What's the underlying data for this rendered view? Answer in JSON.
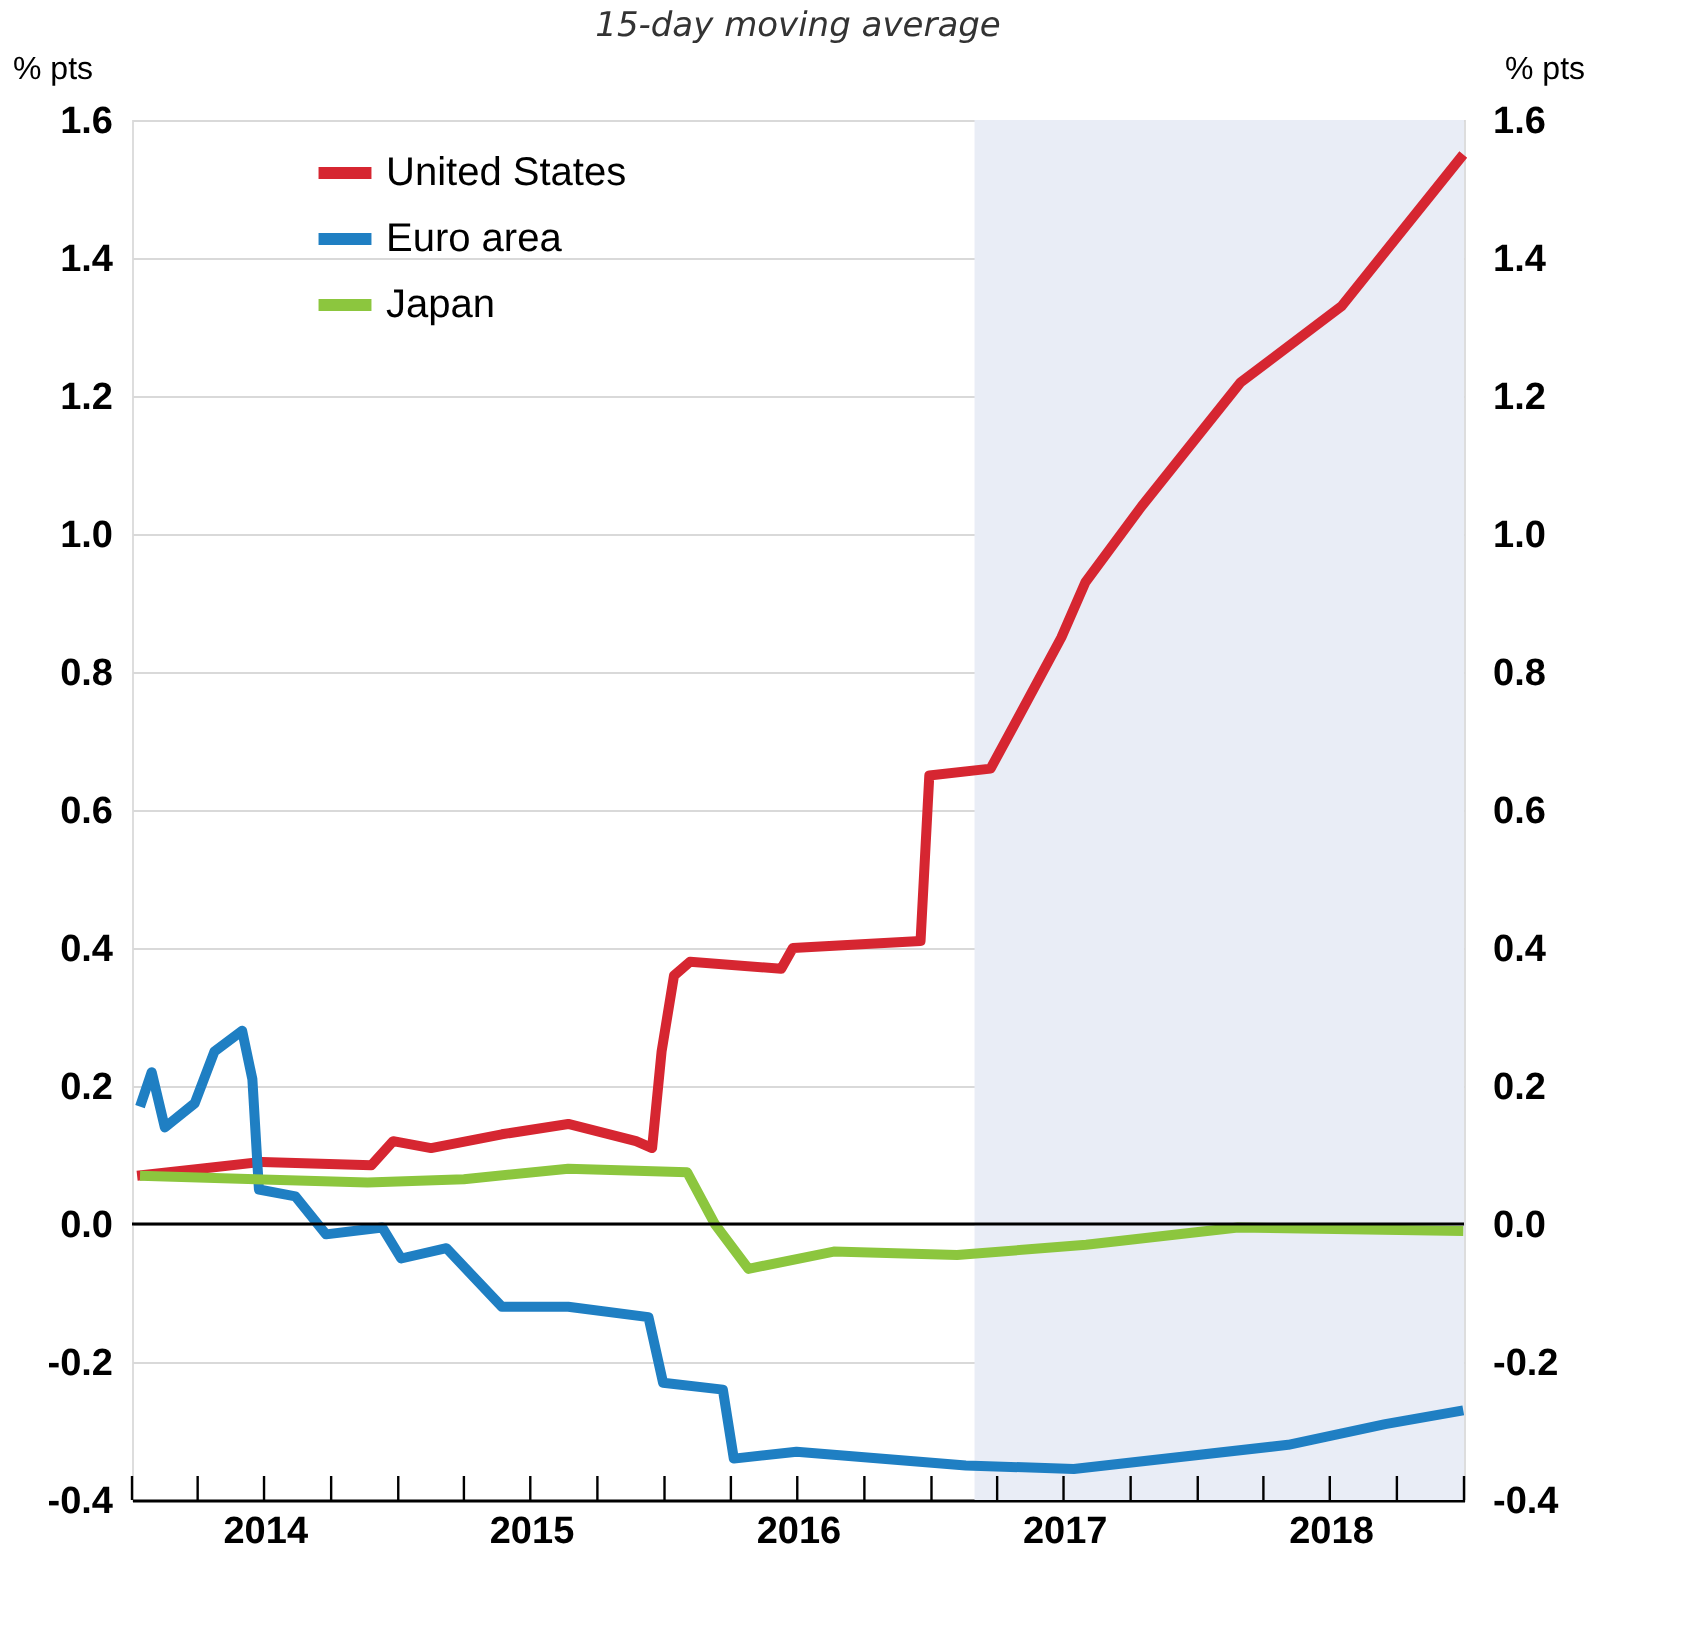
{
  "chart_data": {
    "type": "line",
    "subtitle": "15-day moving average",
    "ylabel": "% pts",
    "y2label": "% pts",
    "xlim": [
      "2014-01-01",
      "2019-01-01"
    ],
    "xticks": [
      {
        "value": "2014-01-01",
        "label": null
      },
      {
        "value": "2014-04-01",
        "label": null
      },
      {
        "value": "2014-07-01",
        "label": null
      },
      {
        "value": "2014-10-01",
        "label": null
      },
      {
        "value": "2015-01-01",
        "label": null
      },
      {
        "value": "2015-04-01",
        "label": null
      },
      {
        "value": "2015-07-01",
        "label": null
      },
      {
        "value": "2015-10-01",
        "label": null
      },
      {
        "value": "2016-01-01",
        "label": null
      },
      {
        "value": "2016-04-01",
        "label": null
      },
      {
        "value": "2016-07-01",
        "label": null
      },
      {
        "value": "2016-10-01",
        "label": null
      },
      {
        "value": "2017-01-01",
        "label": null
      },
      {
        "value": "2017-04-01",
        "label": null
      },
      {
        "value": "2017-07-01",
        "label": null
      },
      {
        "value": "2017-10-01",
        "label": null
      },
      {
        "value": "2018-01-01",
        "label": null
      },
      {
        "value": "2018-04-01",
        "label": null
      },
      {
        "value": "2018-07-01",
        "label": null
      },
      {
        "value": "2018-10-01",
        "label": null
      },
      {
        "value": "2019-01-01",
        "label": null
      },
      {
        "value": "2014-07-02",
        "label": "2014"
      },
      {
        "value": "2015-07-02",
        "label": "2015"
      },
      {
        "value": "2016-07-02",
        "label": "2016"
      },
      {
        "value": "2017-07-02",
        "label": "2017"
      },
      {
        "value": "2018-07-02",
        "label": "2018"
      }
    ],
    "ylim": [
      -0.4,
      1.6
    ],
    "yticks": [
      {
        "value": -0.4,
        "label": "-0.4"
      },
      {
        "value": -0.2,
        "label": "-0.2"
      },
      {
        "value": 0,
        "label": "0.0"
      },
      {
        "value": 0.2,
        "label": "0.2"
      },
      {
        "value": 0.4,
        "label": "0.4"
      },
      {
        "value": 0.6,
        "label": "0.6"
      },
      {
        "value": 0.8,
        "label": "0.8"
      },
      {
        "value": 1,
        "label": "1.0"
      },
      {
        "value": 1.2,
        "label": "1.2"
      },
      {
        "value": 1.4,
        "label": "1.4"
      },
      {
        "value": 1.6,
        "label": "1.6"
      }
    ],
    "y2lim": [
      -0.4,
      1.6
    ],
    "y2ticks": [
      {
        "value": -0.4,
        "label": "-0.4"
      },
      {
        "value": -0.2,
        "label": "-0.2"
      },
      {
        "value": 0,
        "label": "0.0"
      },
      {
        "value": 0.2,
        "label": "0.2"
      },
      {
        "value": 0.4,
        "label": "0.4"
      },
      {
        "value": 0.6,
        "label": "0.6"
      },
      {
        "value": 0.8,
        "label": "0.8"
      },
      {
        "value": 1,
        "label": "1.0"
      },
      {
        "value": 1.2,
        "label": "1.2"
      },
      {
        "value": 1.4,
        "label": "1.4"
      },
      {
        "value": 1.6,
        "label": "1.6"
      }
    ],
    "grid": "y",
    "legend": "top left",
    "line_style": "solid",
    "marker": "none",
    "ref_lines": [
      {
        "axis": "y",
        "value": 0,
        "color": "#000000"
      }
    ],
    "bands": [
      {
        "axis": "x",
        "from": "2017-03-01",
        "to": "2019-01-01",
        "color": "#e9edf6"
      }
    ],
    "series": [
      {
        "name": "United States",
        "color": "#d62631",
        "x": [
          "2014-01-08",
          "2014-04-05",
          "2014-06-28",
          "2014-11-25",
          "2014-12-25",
          "2015-02-15",
          "2015-05-23",
          "2015-08-22",
          "2015-11-23",
          "2015-12-15",
          "2015-12-28",
          "2016-01-14",
          "2016-02-05",
          "2016-06-09",
          "2016-06-25",
          "2016-12-17",
          "2016-12-29",
          "2017-03-23",
          "2017-05-03",
          "2017-06-28",
          "2017-07-31",
          "2017-10-16",
          "2018-03-01",
          "2018-07-17",
          "2018-12-31"
        ],
        "values": [
          0.07,
          0.08,
          0.09,
          0.085,
          0.12,
          0.11,
          0.13,
          0.145,
          0.12,
          0.11,
          0.25,
          0.36,
          0.38,
          0.37,
          0.4,
          0.41,
          0.65,
          0.66,
          0.74,
          0.85,
          0.93,
          1.04,
          1.22,
          1.33,
          1.55
        ]
      },
      {
        "name": "Euro area",
        "color": "#1f7fc3",
        "x": [
          "2014-01-12",
          "2014-01-28",
          "2014-02-15",
          "2014-03-28",
          "2014-04-24",
          "2014-06-01",
          "2014-06-15",
          "2014-06-24",
          "2014-08-13",
          "2014-09-24",
          "2014-12-10",
          "2015-01-05",
          "2015-03-08",
          "2015-05-23",
          "2015-08-22",
          "2015-12-10",
          "2015-12-30",
          "2016-03-21",
          "2016-04-05",
          "2016-06-30",
          "2017-02-17",
          "2017-07-15",
          "2018-05-05",
          "2018-09-15",
          "2018-12-31"
        ],
        "values": [
          0.17,
          0.22,
          0.14,
          0.175,
          0.25,
          0.28,
          0.21,
          0.05,
          0.04,
          -0.015,
          -0.005,
          -0.05,
          -0.035,
          -0.12,
          -0.12,
          -0.135,
          -0.23,
          -0.24,
          -0.34,
          -0.33,
          -0.35,
          -0.355,
          -0.32,
          -0.29,
          -0.27
        ]
      },
      {
        "name": "Japan",
        "color": "#8cc63e",
        "x": [
          "2014-01-12",
          "2014-11-20",
          "2015-04-01",
          "2015-08-22",
          "2016-02-01",
          "2016-03-10",
          "2016-04-25",
          "2016-08-20",
          "2017-02-05",
          "2017-08-01",
          "2018-02-25",
          "2018-12-31"
        ],
        "values": [
          0.07,
          0.06,
          0.065,
          0.08,
          0.075,
          0.0,
          -0.065,
          -0.04,
          -0.045,
          -0.03,
          -0.005,
          -0.01
        ]
      }
    ]
  }
}
